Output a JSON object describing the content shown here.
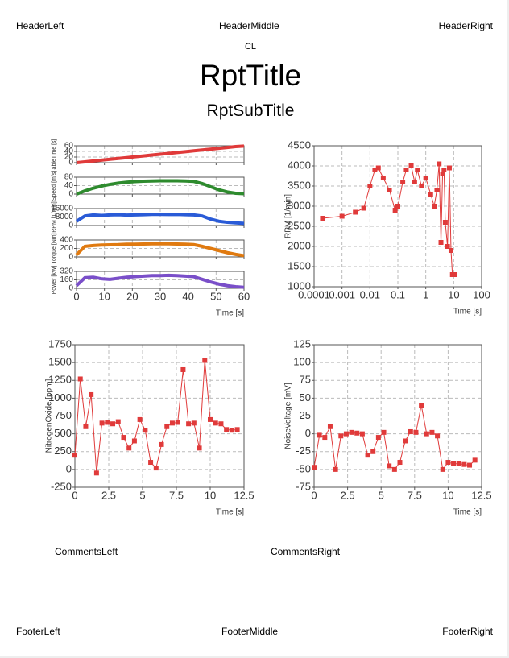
{
  "header": {
    "left": "HeaderLeft",
    "middle": "HeaderMiddle",
    "right": "HeaderRight"
  },
  "cl": "CL",
  "title": "RptTitle",
  "subtitle": "RptSubTitle",
  "comments": {
    "left": "CommentsLeft",
    "right": "CommentsRight"
  },
  "footer": {
    "left": "FooterLeft",
    "middle": "FooterMiddle",
    "right": "FooterRight"
  },
  "chart_data": [
    {
      "type": "line",
      "xlabel": "Time [s]",
      "x": [
        0,
        3,
        6,
        9,
        12,
        15,
        18,
        21,
        24,
        27,
        30,
        33,
        36,
        39,
        42,
        45,
        48,
        51,
        54,
        57,
        60
      ],
      "xlim": [
        0,
        60
      ],
      "xticks": [
        0,
        10,
        20,
        30,
        40,
        50,
        60
      ],
      "grid": true,
      "panels": [
        {
          "ylabel": "ableTime [s]",
          "ylim": [
            0,
            60
          ],
          "yticks": [
            0,
            20,
            40,
            60
          ],
          "series": [
            {
              "color": "#e03a3a",
              "values": [
                0,
                3,
                6,
                9,
                12,
                15,
                18,
                21,
                24,
                27,
                30,
                33,
                36,
                39,
                42,
                45,
                48,
                51,
                54,
                57,
                59
              ]
            }
          ]
        },
        {
          "ylabel": "Speed [m/s]",
          "ylim": [
            0,
            80
          ],
          "yticks": [
            0,
            40,
            80
          ],
          "series": [
            {
              "color": "#2e8b2e",
              "values": [
                0,
                15,
                28,
                38,
                46,
                52,
                56,
                59,
                61,
                62,
                63,
                63,
                63,
                62,
                60,
                50,
                35,
                20,
                10,
                4,
                2
              ]
            }
          ]
        },
        {
          "ylabel": "RPM [1/min]",
          "ylim": [
            0,
            16000
          ],
          "yticks": [
            0,
            8000,
            16000
          ],
          "series": [
            {
              "color": "#2a5bd7",
              "values": [
                4000,
                9000,
                10000,
                9500,
                10000,
                10200,
                9800,
                10000,
                10200,
                10500,
                10500,
                10400,
                10500,
                10200,
                10000,
                9000,
                6000,
                4000,
                3000,
                2500,
                2000
              ]
            }
          ]
        },
        {
          "ylabel": "Torque [Nm]",
          "ylim": [
            0,
            400
          ],
          "yticks": [
            0,
            200,
            400
          ],
          "series": [
            {
              "color": "#e07a10",
              "values": [
                50,
                250,
                270,
                280,
                285,
                290,
                300,
                300,
                305,
                310,
                310,
                310,
                305,
                300,
                290,
                250,
                200,
                150,
                100,
                60,
                30
              ]
            }
          ]
        },
        {
          "ylabel": "Power [kW]",
          "ylim": [
            0,
            320
          ],
          "yticks": [
            0,
            160,
            320
          ],
          "series": [
            {
              "color": "#7a4fc9",
              "values": [
                50,
                200,
                210,
                180,
                170,
                190,
                210,
                220,
                230,
                240,
                240,
                245,
                240,
                230,
                220,
                170,
                120,
                80,
                50,
                30,
                20
              ]
            }
          ]
        }
      ]
    },
    {
      "type": "line",
      "xlabel": "Time [s]",
      "ylabel": "RPM [1/min]",
      "xlog": true,
      "grid": true,
      "xlim": [
        0.0001,
        100
      ],
      "xticks": [
        0.0001,
        0.001,
        0.01,
        0.1,
        1,
        10,
        100
      ],
      "ylim": [
        1000,
        4500
      ],
      "yticks": [
        1000,
        1500,
        2000,
        2500,
        3000,
        3500,
        4000,
        4500
      ],
      "x": [
        0.0002,
        0.001,
        0.003,
        0.006,
        0.01,
        0.015,
        0.02,
        0.03,
        0.05,
        0.08,
        0.1,
        0.15,
        0.2,
        0.3,
        0.4,
        0.5,
        0.7,
        1,
        1.5,
        2,
        2.5,
        3,
        3.5,
        4,
        4.5,
        5,
        6,
        7,
        8,
        9,
        10,
        11
      ],
      "series": [
        {
          "color": "#e03a3a",
          "values": [
            2700,
            2750,
            2850,
            2950,
            3500,
            3900,
            3950,
            3700,
            3400,
            2900,
            3000,
            3600,
            3900,
            4000,
            3600,
            3900,
            3500,
            3700,
            3300,
            3000,
            3400,
            4050,
            2100,
            3800,
            3900,
            2600,
            2000,
            3950,
            1900,
            1300,
            1300,
            1300
          ]
        }
      ]
    },
    {
      "type": "line",
      "xlabel": "Time [s]",
      "ylabel": "NitrogenOxide [ppm]",
      "grid": true,
      "xlim": [
        0,
        12.5
      ],
      "xticks": [
        0,
        2.5,
        5,
        7.5,
        10,
        12.5
      ],
      "ylim": [
        -250,
        1750
      ],
      "yticks": [
        -250,
        0,
        250,
        500,
        750,
        1000,
        1250,
        1500,
        1750
      ],
      "x": [
        0,
        0.4,
        0.8,
        1.2,
        1.6,
        2,
        2.4,
        2.8,
        3.2,
        3.6,
        4,
        4.4,
        4.8,
        5.2,
        5.6,
        6,
        6.4,
        6.8,
        7.2,
        7.6,
        8,
        8.4,
        8.8,
        9.2,
        9.6,
        10,
        10.4,
        10.8,
        11.2,
        11.6,
        12
      ],
      "series": [
        {
          "color": "#e03a3a",
          "values": [
            200,
            1270,
            600,
            1050,
            -50,
            650,
            660,
            640,
            670,
            450,
            300,
            400,
            700,
            550,
            100,
            20,
            350,
            600,
            650,
            660,
            1400,
            640,
            650,
            300,
            1530,
            700,
            650,
            640,
            560,
            550,
            560
          ]
        }
      ]
    },
    {
      "type": "line",
      "xlabel": "Time [s]",
      "ylabel": "NoiseVoltage [mV]",
      "grid": true,
      "xlim": [
        0,
        12.5
      ],
      "xticks": [
        0,
        2.5,
        5,
        7.5,
        10,
        12.5
      ],
      "ylim": [
        -75,
        125
      ],
      "yticks": [
        -75,
        -50,
        -25,
        0,
        25,
        50,
        75,
        100,
        125
      ],
      "x": [
        0,
        0.4,
        0.8,
        1.2,
        1.6,
        2,
        2.4,
        2.8,
        3.2,
        3.6,
        4,
        4.4,
        4.8,
        5.2,
        5.6,
        6,
        6.4,
        6.8,
        7.2,
        7.6,
        8,
        8.4,
        8.8,
        9.2,
        9.6,
        10,
        10.4,
        10.8,
        11.2,
        11.6,
        12
      ],
      "series": [
        {
          "color": "#e03a3a",
          "values": [
            -47,
            -2,
            -5,
            10,
            -50,
            -3,
            0,
            2,
            1,
            0,
            -30,
            -25,
            -5,
            2,
            -45,
            -50,
            -40,
            -10,
            3,
            2,
            40,
            0,
            2,
            -3,
            -50,
            -40,
            -42,
            -42,
            -43,
            -44,
            -37
          ]
        }
      ]
    }
  ]
}
